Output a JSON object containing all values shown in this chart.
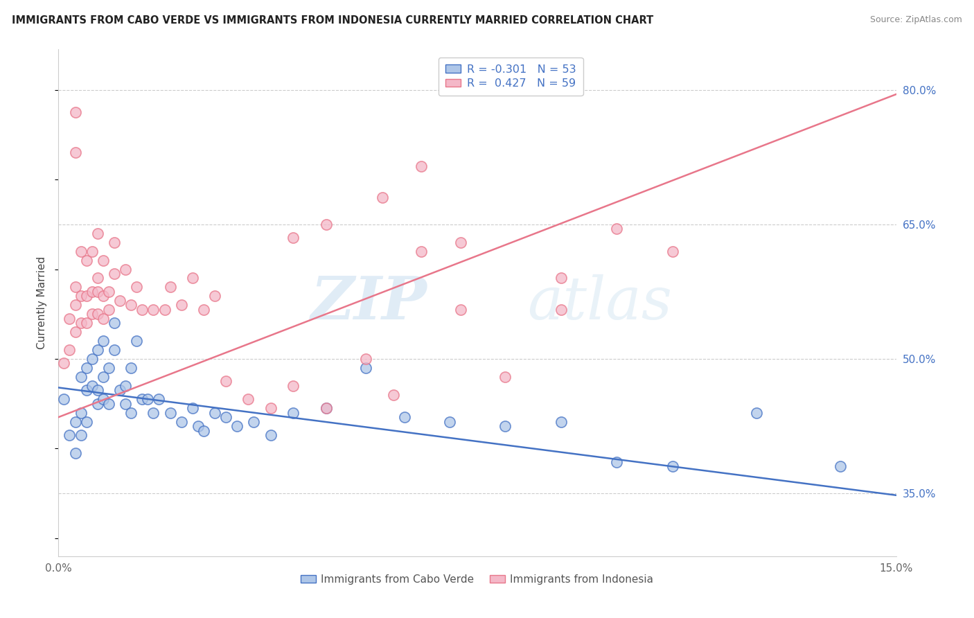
{
  "title": "IMMIGRANTS FROM CABO VERDE VS IMMIGRANTS FROM INDONESIA CURRENTLY MARRIED CORRELATION CHART",
  "source": "Source: ZipAtlas.com",
  "ylabel": "Currently Married",
  "y_ticks": [
    0.35,
    0.5,
    0.65,
    0.8
  ],
  "y_tick_labels": [
    "35.0%",
    "50.0%",
    "65.0%",
    "80.0%"
  ],
  "x_range": [
    0.0,
    0.15
  ],
  "y_range": [
    0.28,
    0.845
  ],
  "legend_label_1": "R = -0.301   N = 53",
  "legend_label_2": "R =  0.427   N = 59",
  "legend_color_1": "#aec6e8",
  "legend_color_2": "#f4b8c8",
  "scatter_color_cabo": "#aec6e8",
  "scatter_color_indo": "#f4b8c8",
  "line_color_cabo": "#4472c4",
  "line_color_indo": "#e8768a",
  "watermark_zip": "ZIP",
  "watermark_atlas": "atlas",
  "bottom_label_1": "Immigrants from Cabo Verde",
  "bottom_label_2": "Immigrants from Indonesia",
  "cabo_line_x": [
    0.0,
    0.15
  ],
  "cabo_line_y": [
    0.468,
    0.348
  ],
  "indo_line_x": [
    0.0,
    0.15
  ],
  "indo_line_y": [
    0.435,
    0.795
  ],
  "cabo_scatter_x": [
    0.001,
    0.002,
    0.003,
    0.003,
    0.004,
    0.004,
    0.004,
    0.005,
    0.005,
    0.005,
    0.006,
    0.006,
    0.007,
    0.007,
    0.007,
    0.008,
    0.008,
    0.008,
    0.009,
    0.009,
    0.01,
    0.01,
    0.011,
    0.012,
    0.012,
    0.013,
    0.013,
    0.014,
    0.015,
    0.016,
    0.017,
    0.018,
    0.02,
    0.022,
    0.024,
    0.025,
    0.026,
    0.028,
    0.03,
    0.032,
    0.035,
    0.038,
    0.042,
    0.048,
    0.055,
    0.062,
    0.07,
    0.08,
    0.09,
    0.1,
    0.11,
    0.125,
    0.14
  ],
  "cabo_scatter_y": [
    0.455,
    0.415,
    0.395,
    0.43,
    0.415,
    0.44,
    0.48,
    0.43,
    0.465,
    0.49,
    0.47,
    0.5,
    0.45,
    0.465,
    0.51,
    0.455,
    0.48,
    0.52,
    0.45,
    0.49,
    0.51,
    0.54,
    0.465,
    0.45,
    0.47,
    0.44,
    0.49,
    0.52,
    0.455,
    0.455,
    0.44,
    0.455,
    0.44,
    0.43,
    0.445,
    0.425,
    0.42,
    0.44,
    0.435,
    0.425,
    0.43,
    0.415,
    0.44,
    0.445,
    0.49,
    0.435,
    0.43,
    0.425,
    0.43,
    0.385,
    0.38,
    0.44,
    0.38
  ],
  "indo_scatter_x": [
    0.001,
    0.002,
    0.002,
    0.003,
    0.003,
    0.003,
    0.004,
    0.004,
    0.004,
    0.005,
    0.005,
    0.005,
    0.006,
    0.006,
    0.006,
    0.007,
    0.007,
    0.007,
    0.007,
    0.008,
    0.008,
    0.008,
    0.009,
    0.009,
    0.01,
    0.01,
    0.011,
    0.012,
    0.013,
    0.014,
    0.015,
    0.017,
    0.019,
    0.02,
    0.022,
    0.024,
    0.026,
    0.028,
    0.03,
    0.034,
    0.038,
    0.042,
    0.048,
    0.055,
    0.06,
    0.065,
    0.072,
    0.08,
    0.09,
    0.1,
    0.11,
    0.003,
    0.003,
    0.042,
    0.048,
    0.058,
    0.065,
    0.072,
    0.09
  ],
  "indo_scatter_y": [
    0.495,
    0.51,
    0.545,
    0.53,
    0.56,
    0.58,
    0.54,
    0.57,
    0.62,
    0.54,
    0.57,
    0.61,
    0.55,
    0.575,
    0.62,
    0.55,
    0.575,
    0.59,
    0.64,
    0.545,
    0.57,
    0.61,
    0.555,
    0.575,
    0.595,
    0.63,
    0.565,
    0.6,
    0.56,
    0.58,
    0.555,
    0.555,
    0.555,
    0.58,
    0.56,
    0.59,
    0.555,
    0.57,
    0.475,
    0.455,
    0.445,
    0.47,
    0.445,
    0.5,
    0.46,
    0.62,
    0.555,
    0.48,
    0.555,
    0.645,
    0.62,
    0.73,
    0.775,
    0.635,
    0.65,
    0.68,
    0.715,
    0.63,
    0.59
  ]
}
